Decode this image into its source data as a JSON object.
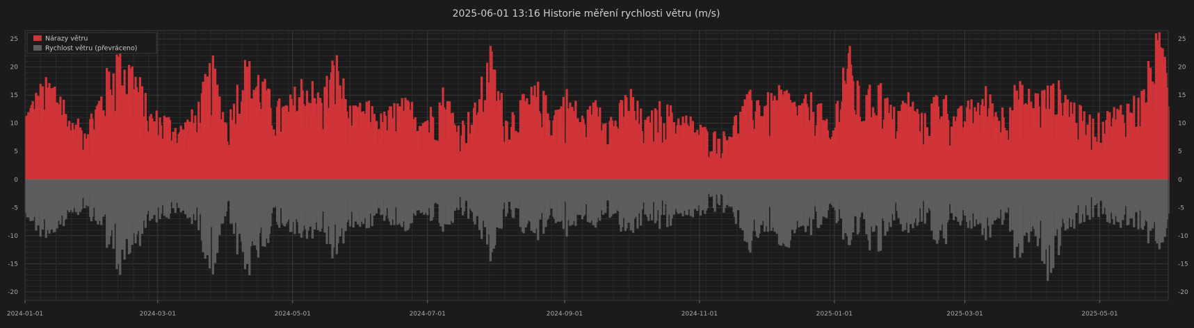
{
  "chart_data": {
    "type": "bar",
    "title": "2025-06-01  13:16  Historie měření rychlosti větru (m/s)",
    "xlabel": "",
    "ylabel": "",
    "ylim": [
      -21.5,
      26.5
    ],
    "yticks": [
      -20,
      -15,
      -10,
      -5,
      0,
      5,
      10,
      15,
      20,
      25
    ],
    "x_range": [
      "2024-01-01",
      "2025-06-01"
    ],
    "x_ticks": [
      "2024-01-01",
      "2024-03-01",
      "2024-05-01",
      "2024-07-01",
      "2024-09-01",
      "2024-11-01",
      "2025-01-01",
      "2025-03-01",
      "2025-05-01"
    ],
    "grid": true,
    "legend_position": "top-left",
    "colors": {
      "background": "#1b1b1b",
      "gust": "#d13438",
      "speed": "#5d5d5d"
    },
    "series": [
      {
        "name": "Nárazy větru",
        "color": "#d13438",
        "daily_max": [
          {
            "date": "2024-01-01",
            "value": 13.5
          },
          {
            "date": "2024-01-08",
            "value": 18.0
          },
          {
            "date": "2024-01-15",
            "value": 19.5
          },
          {
            "date": "2024-01-22",
            "value": 10.5
          },
          {
            "date": "2024-01-29",
            "value": 11.5
          },
          {
            "date": "2024-02-05",
            "value": 18.5
          },
          {
            "date": "2024-02-12",
            "value": 26.0
          },
          {
            "date": "2024-02-19",
            "value": 22.0
          },
          {
            "date": "2024-02-26",
            "value": 13.0
          },
          {
            "date": "2024-03-04",
            "value": 12.5
          },
          {
            "date": "2024-03-11",
            "value": 10.5
          },
          {
            "date": "2024-03-18",
            "value": 13.5
          },
          {
            "date": "2024-03-25",
            "value": 23.0
          },
          {
            "date": "2024-04-01",
            "value": 11.0
          },
          {
            "date": "2024-04-08",
            "value": 22.5
          },
          {
            "date": "2024-04-15",
            "value": 21.0
          },
          {
            "date": "2024-04-22",
            "value": 14.5
          },
          {
            "date": "2024-04-29",
            "value": 15.0
          },
          {
            "date": "2024-05-06",
            "value": 20.5
          },
          {
            "date": "2024-05-13",
            "value": 16.0
          },
          {
            "date": "2024-05-20",
            "value": 24.0
          },
          {
            "date": "2024-05-27",
            "value": 13.0
          },
          {
            "date": "2024-06-03",
            "value": 14.5
          },
          {
            "date": "2024-06-10",
            "value": 12.0
          },
          {
            "date": "2024-06-17",
            "value": 15.0
          },
          {
            "date": "2024-06-24",
            "value": 14.5
          },
          {
            "date": "2024-07-01",
            "value": 13.0
          },
          {
            "date": "2024-07-08",
            "value": 17.5
          },
          {
            "date": "2024-07-15",
            "value": 10.5
          },
          {
            "date": "2024-07-22",
            "value": 14.0
          },
          {
            "date": "2024-07-29",
            "value": 24.5
          },
          {
            "date": "2024-08-05",
            "value": 12.5
          },
          {
            "date": "2024-08-12",
            "value": 15.0
          },
          {
            "date": "2024-08-19",
            "value": 18.0
          },
          {
            "date": "2024-08-26",
            "value": 13.5
          },
          {
            "date": "2024-09-02",
            "value": 17.0
          },
          {
            "date": "2024-09-09",
            "value": 12.0
          },
          {
            "date": "2024-09-16",
            "value": 15.5
          },
          {
            "date": "2024-09-23",
            "value": 12.0
          },
          {
            "date": "2024-09-30",
            "value": 17.5
          },
          {
            "date": "2024-10-07",
            "value": 11.0
          },
          {
            "date": "2024-10-14",
            "value": 14.5
          },
          {
            "date": "2024-10-21",
            "value": 13.0
          },
          {
            "date": "2024-10-28",
            "value": 11.5
          },
          {
            "date": "2024-11-04",
            "value": 9.5
          },
          {
            "date": "2024-11-11",
            "value": 8.5
          },
          {
            "date": "2024-11-18",
            "value": 13.0
          },
          {
            "date": "2024-11-25",
            "value": 17.0
          },
          {
            "date": "2024-12-02",
            "value": 15.5
          },
          {
            "date": "2024-12-09",
            "value": 17.5
          },
          {
            "date": "2024-12-16",
            "value": 14.5
          },
          {
            "date": "2024-12-23",
            "value": 16.5
          },
          {
            "date": "2024-12-30",
            "value": 8.5
          },
          {
            "date": "2025-01-06",
            "value": 26.5
          },
          {
            "date": "2025-01-13",
            "value": 14.5
          },
          {
            "date": "2025-01-20",
            "value": 19.5
          },
          {
            "date": "2025-01-27",
            "value": 13.0
          },
          {
            "date": "2025-02-03",
            "value": 16.5
          },
          {
            "date": "2025-02-10",
            "value": 11.5
          },
          {
            "date": "2025-02-17",
            "value": 18.0
          },
          {
            "date": "2025-02-24",
            "value": 12.5
          },
          {
            "date": "2025-03-03",
            "value": 14.5
          },
          {
            "date": "2025-03-10",
            "value": 17.0
          },
          {
            "date": "2025-03-17",
            "value": 13.5
          },
          {
            "date": "2025-03-24",
            "value": 18.0
          },
          {
            "date": "2025-03-31",
            "value": 16.5
          },
          {
            "date": "2025-04-07",
            "value": 17.5
          },
          {
            "date": "2025-04-14",
            "value": 18.0
          },
          {
            "date": "2025-04-21",
            "value": 13.5
          },
          {
            "date": "2025-04-28",
            "value": 11.5
          },
          {
            "date": "2025-05-05",
            "value": 13.0
          },
          {
            "date": "2025-05-12",
            "value": 15.0
          },
          {
            "date": "2025-05-19",
            "value": 16.0
          },
          {
            "date": "2025-05-26",
            "value": 26.5
          }
        ]
      },
      {
        "name": "Rychlost větru (převráceno)",
        "color": "#5d5d5d",
        "daily_max": [
          {
            "date": "2024-01-01",
            "value": -8.0
          },
          {
            "date": "2024-01-08",
            "value": -11.0
          },
          {
            "date": "2024-01-15",
            "value": -12.5
          },
          {
            "date": "2024-01-22",
            "value": -6.5
          },
          {
            "date": "2024-01-29",
            "value": -7.5
          },
          {
            "date": "2024-02-05",
            "value": -11.0
          },
          {
            "date": "2024-02-12",
            "value": -20.0
          },
          {
            "date": "2024-02-19",
            "value": -14.5
          },
          {
            "date": "2024-02-26",
            "value": -8.5
          },
          {
            "date": "2024-03-04",
            "value": -8.0
          },
          {
            "date": "2024-03-11",
            "value": -7.0
          },
          {
            "date": "2024-03-18",
            "value": -9.0
          },
          {
            "date": "2024-03-25",
            "value": -19.5
          },
          {
            "date": "2024-04-01",
            "value": -7.0
          },
          {
            "date": "2024-04-08",
            "value": -20.0
          },
          {
            "date": "2024-04-15",
            "value": -16.0
          },
          {
            "date": "2024-04-22",
            "value": -9.5
          },
          {
            "date": "2024-04-29",
            "value": -10.0
          },
          {
            "date": "2024-05-06",
            "value": -14.0
          },
          {
            "date": "2024-05-13",
            "value": -10.5
          },
          {
            "date": "2024-05-20",
            "value": -16.0
          },
          {
            "date": "2024-05-27",
            "value": -8.5
          },
          {
            "date": "2024-06-03",
            "value": -9.5
          },
          {
            "date": "2024-06-10",
            "value": -7.5
          },
          {
            "date": "2024-06-17",
            "value": -10.0
          },
          {
            "date": "2024-06-24",
            "value": -9.5
          },
          {
            "date": "2024-07-01",
            "value": -8.5
          },
          {
            "date": "2024-07-08",
            "value": -11.5
          },
          {
            "date": "2024-07-15",
            "value": -7.0
          },
          {
            "date": "2024-07-22",
            "value": -9.0
          },
          {
            "date": "2024-07-29",
            "value": -15.5
          },
          {
            "date": "2024-08-05",
            "value": -8.0
          },
          {
            "date": "2024-08-12",
            "value": -9.5
          },
          {
            "date": "2024-08-19",
            "value": -11.5
          },
          {
            "date": "2024-08-26",
            "value": -9.0
          },
          {
            "date": "2024-09-02",
            "value": -11.0
          },
          {
            "date": "2024-09-09",
            "value": -8.0
          },
          {
            "date": "2024-09-16",
            "value": -10.0
          },
          {
            "date": "2024-09-23",
            "value": -8.0
          },
          {
            "date": "2024-09-30",
            "value": -11.5
          },
          {
            "date": "2024-10-07",
            "value": -7.5
          },
          {
            "date": "2024-10-14",
            "value": -9.5
          },
          {
            "date": "2024-10-21",
            "value": -8.5
          },
          {
            "date": "2024-10-28",
            "value": -7.5
          },
          {
            "date": "2024-11-04",
            "value": -6.5
          },
          {
            "date": "2024-11-11",
            "value": -6.0
          },
          {
            "date": "2024-11-18",
            "value": -9.0
          },
          {
            "date": "2024-11-25",
            "value": -15.0
          },
          {
            "date": "2024-12-02",
            "value": -10.0
          },
          {
            "date": "2024-12-09",
            "value": -15.0
          },
          {
            "date": "2024-12-16",
            "value": -9.5
          },
          {
            "date": "2024-12-23",
            "value": -11.0
          },
          {
            "date": "2024-12-30",
            "value": -5.5
          },
          {
            "date": "2025-01-06",
            "value": -15.0
          },
          {
            "date": "2025-01-13",
            "value": -9.5
          },
          {
            "date": "2025-01-20",
            "value": -16.5
          },
          {
            "date": "2025-01-27",
            "value": -8.5
          },
          {
            "date": "2025-02-03",
            "value": -11.0
          },
          {
            "date": "2025-02-10",
            "value": -7.5
          },
          {
            "date": "2025-02-17",
            "value": -15.5
          },
          {
            "date": "2025-02-24",
            "value": -8.0
          },
          {
            "date": "2025-03-03",
            "value": -9.5
          },
          {
            "date": "2025-03-10",
            "value": -12.0
          },
          {
            "date": "2025-03-17",
            "value": -9.0
          },
          {
            "date": "2025-03-24",
            "value": -15.5
          },
          {
            "date": "2025-03-31",
            "value": -11.0
          },
          {
            "date": "2025-04-07",
            "value": -19.5
          },
          {
            "date": "2025-04-14",
            "value": -12.0
          },
          {
            "date": "2025-04-21",
            "value": -9.0
          },
          {
            "date": "2025-04-28",
            "value": -7.5
          },
          {
            "date": "2025-05-05",
            "value": -8.5
          },
          {
            "date": "2025-05-12",
            "value": -10.0
          },
          {
            "date": "2025-05-19",
            "value": -10.5
          },
          {
            "date": "2025-05-26",
            "value": -13.0
          }
        ]
      }
    ]
  }
}
